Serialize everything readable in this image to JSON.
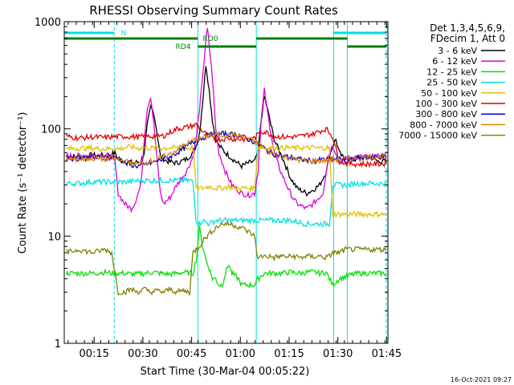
{
  "chart_data": {
    "type": "line",
    "title": "RHESSI Observing Summary Count Rates",
    "xlabel": "Start Time (30-Mar-04 00:05:22)",
    "ylabel": "Count Rate (s⁻¹ detector⁻¹)",
    "y_scale": "log",
    "ylim": [
      1,
      1000
    ],
    "xlim_minutes": [
      5.4,
      105.0
    ],
    "x_tick_labels": [
      "00:15",
      "00:30",
      "00:45",
      "01:00",
      "01:15",
      "01:30",
      "01:45"
    ],
    "y_tick_labels": [
      "1",
      "10",
      "100",
      "1000"
    ],
    "footer_date": "16-Oct-2021 09:27",
    "legend": {
      "header_line1": "Det 1,3,4,5,6,9,",
      "header_line2": "FDecim 1, Att 0",
      "placement": "top-right outside"
    },
    "series": [
      {
        "name": "3 - 6 keV",
        "color": "#000000",
        "x": [
          6,
          10,
          14,
          18,
          20,
          21,
          22,
          24,
          27,
          29,
          30,
          31,
          32,
          33,
          34,
          35,
          37,
          40,
          43,
          45,
          46,
          47,
          48,
          49,
          50,
          51,
          52,
          53,
          55,
          58,
          60,
          62,
          64,
          65,
          66,
          67,
          68,
          70,
          73,
          75,
          77,
          80,
          82,
          84,
          86,
          87,
          88,
          89,
          90,
          92,
          95,
          99,
          102,
          104.5
        ],
        "y": [
          55,
          55,
          57,
          56,
          58,
          60,
          52,
          50,
          48,
          50,
          60,
          110,
          160,
          140,
          90,
          55,
          50,
          48,
          52,
          60,
          70,
          90,
          180,
          400,
          230,
          120,
          80,
          70,
          60,
          50,
          45,
          48,
          50,
          60,
          120,
          200,
          150,
          80,
          50,
          35,
          28,
          25,
          27,
          30,
          40,
          55,
          70,
          80,
          60,
          50,
          52,
          55,
          50,
          50
        ]
      },
      {
        "name": "6 - 12 keV",
        "color": "#e000e0",
        "x": [
          6,
          10,
          14,
          18,
          20,
          21,
          22,
          24,
          26,
          27,
          29,
          30,
          31,
          32,
          33,
          34,
          35,
          36,
          38,
          40,
          43,
          45,
          46,
          47,
          48,
          49,
          49.5,
          50,
          51,
          52,
          53,
          55,
          57,
          60,
          62,
          64,
          65,
          66,
          67,
          68,
          70,
          72,
          75,
          77,
          80,
          82,
          85,
          86,
          87,
          88,
          89,
          90,
          92,
          95,
          99,
          102,
          104.5
        ],
        "y": [
          56,
          56,
          57,
          57,
          55,
          50,
          25,
          20,
          18,
          20,
          30,
          80,
          160,
          200,
          110,
          50,
          25,
          20,
          23,
          30,
          40,
          55,
          80,
          150,
          300,
          700,
          850,
          600,
          300,
          100,
          60,
          40,
          30,
          25,
          24,
          25,
          40,
          120,
          230,
          140,
          60,
          40,
          25,
          20,
          18,
          20,
          25,
          40,
          60,
          70,
          60,
          50,
          52,
          55,
          55,
          55,
          55
        ]
      },
      {
        "name": "12 - 25 keV",
        "color": "#00e000",
        "x": [
          6,
          10,
          14,
          18,
          20,
          24,
          27,
          30,
          33,
          35,
          38,
          40,
          42,
          44,
          45,
          46,
          47,
          48,
          49,
          50,
          51,
          52,
          53,
          54,
          55,
          56,
          57,
          59,
          60,
          61,
          62,
          63,
          64,
          65,
          67,
          70,
          72,
          75,
          78,
          80,
          82,
          84,
          86,
          87,
          88,
          90,
          93,
          96,
          100,
          104.5
        ],
        "y": [
          4.5,
          4.5,
          4.5,
          4.6,
          4.5,
          4.5,
          4.4,
          4.5,
          4.6,
          4.5,
          4.4,
          4.5,
          4.6,
          4.5,
          4.5,
          6,
          12,
          8,
          6,
          5,
          4,
          4,
          3.5,
          3.5,
          4.5,
          5.5,
          4.5,
          4,
          3.5,
          3.5,
          3.5,
          3.5,
          3.5,
          4,
          4.5,
          4.5,
          4.5,
          4.6,
          4.5,
          4.6,
          4.6,
          4.5,
          4.6,
          4,
          3.5,
          4,
          4.3,
          4.5,
          4.5,
          4.5
        ]
      },
      {
        "name": "25 - 50 keV",
        "color": "#00e0e0",
        "x": [
          6,
          10,
          14,
          18,
          20,
          24,
          30,
          35,
          40,
          44,
          45,
          46,
          47,
          48,
          50,
          52,
          55,
          58,
          60,
          62,
          64,
          65,
          67,
          70,
          75,
          80,
          84,
          86,
          87,
          88,
          90,
          93,
          95,
          99,
          102,
          104.5
        ],
        "y": [
          31,
          31,
          32,
          32,
          32,
          32,
          33,
          33,
          33,
          33,
          32,
          14,
          13,
          14,
          13,
          14,
          14,
          14,
          14,
          14,
          14,
          14,
          14,
          14,
          14,
          13,
          13,
          13,
          13,
          30,
          30,
          30,
          31,
          31,
          31,
          31
        ]
      },
      {
        "name": "50 - 100 keV",
        "color": "#e0c000",
        "x": [
          6,
          10,
          14,
          18,
          20,
          22,
          24,
          26,
          28,
          30,
          32,
          34,
          36,
          38,
          40,
          42,
          44,
          45,
          46,
          47,
          48,
          50,
          52,
          54,
          56,
          58,
          60,
          62,
          64,
          65,
          66,
          68,
          70,
          72,
          74,
          76,
          78,
          80,
          82,
          84,
          86,
          87,
          88,
          90,
          92,
          95,
          99,
          104.5
        ],
        "y": [
          65,
          66,
          66,
          65,
          66,
          65,
          67,
          68,
          66,
          67,
          66,
          67,
          66,
          67,
          66,
          67,
          66,
          67,
          28,
          28,
          28,
          29,
          28,
          28,
          29,
          28,
          28,
          28,
          28,
          68,
          67,
          66,
          67,
          66,
          67,
          66,
          67,
          66,
          67,
          66,
          67,
          66,
          16,
          16,
          16,
          16,
          16,
          16
        ]
      },
      {
        "name": "100 - 300 keV",
        "color": "#e00000",
        "x": [
          6,
          10,
          14,
          18,
          20,
          24,
          28,
          32,
          36,
          40,
          44,
          46,
          48,
          50,
          52,
          54,
          56,
          58,
          60,
          62,
          64,
          66,
          68,
          70,
          74,
          78,
          82,
          84,
          86,
          88,
          90,
          92,
          95,
          99,
          104.5
        ],
        "y": [
          85,
          82,
          84,
          83,
          84,
          85,
          84,
          85,
          86,
          100,
          105,
          110,
          95,
          85,
          80,
          80,
          82,
          80,
          80,
          80,
          82,
          95,
          92,
          85,
          84,
          85,
          90,
          95,
          100,
          85,
          50,
          48,
          47,
          47,
          47
        ]
      },
      {
        "name": "300 - 800 keV",
        "color": "#0000e0",
        "x": [
          6,
          10,
          14,
          18,
          20,
          22,
          24,
          26,
          28,
          30,
          34,
          38,
          42,
          46,
          50,
          54,
          58,
          60,
          62,
          64,
          66,
          68,
          70,
          74,
          78,
          82,
          86,
          90,
          94,
          98,
          102,
          104.5
        ],
        "y": [
          53,
          53,
          54,
          53,
          54,
          54,
          48,
          46,
          45,
          46,
          50,
          55,
          65,
          78,
          88,
          90,
          88,
          85,
          80,
          75,
          70,
          62,
          58,
          55,
          52,
          50,
          52,
          52,
          53,
          54,
          55,
          55
        ]
      },
      {
        "name": "800 - 7000 keV",
        "color": "#e08000",
        "x": [
          6,
          10,
          14,
          18,
          20,
          22,
          24,
          26,
          28,
          30,
          34,
          38,
          42,
          46,
          50,
          54,
          58,
          60,
          62,
          64,
          66,
          68,
          70,
          74,
          78,
          82,
          86,
          90,
          94,
          98,
          102,
          104.5
        ],
        "y": [
          52,
          52,
          53,
          52,
          53,
          52,
          50,
          48,
          47,
          48,
          52,
          58,
          70,
          80,
          86,
          88,
          87,
          85,
          82,
          76,
          70,
          62,
          58,
          54,
          51,
          50,
          51,
          52,
          53,
          54,
          55,
          55
        ]
      },
      {
        "name": "7000 - 15000 keV",
        "color": "#808000",
        "x": [
          6,
          10,
          14,
          18,
          20,
          22,
          24,
          26,
          28,
          30,
          32,
          34,
          36,
          38,
          40,
          42,
          44,
          45,
          46,
          47,
          48,
          50,
          52,
          54,
          56,
          58,
          60,
          62,
          64,
          65,
          66,
          68,
          70,
          72,
          74,
          76,
          78,
          80,
          82,
          84,
          86,
          87,
          88,
          90,
          92,
          95,
          99,
          104.5
        ],
        "y": [
          7,
          7.5,
          7,
          7.5,
          7,
          3,
          3,
          3.2,
          3,
          3.2,
          3,
          3.1,
          3,
          3.2,
          3,
          3.1,
          3,
          7,
          7.5,
          8,
          9,
          10.5,
          12,
          13,
          13,
          12.5,
          12,
          11,
          10,
          6,
          6.5,
          6.5,
          6.3,
          6.5,
          6.4,
          6.5,
          6.3,
          6.5,
          6.4,
          6.5,
          6.3,
          6.5,
          7,
          7,
          7.5,
          7.5,
          7.5,
          7.5
        ]
      }
    ],
    "attenuator_state_bar": {
      "color": "#008000",
      "label_rd0": "RD0",
      "label_rd4": "RD4",
      "segments": [
        {
          "x0": 5.4,
          "x1": 46.5,
          "level": "RD0"
        },
        {
          "x0": 46.5,
          "x1": 64.5,
          "level": "RD4"
        },
        {
          "x0": 64.5,
          "x1": 92.5,
          "level": "RD0"
        },
        {
          "x0": 92.5,
          "x1": 104.5,
          "level": "RD4"
        }
      ]
    },
    "night_bar": {
      "color": "#00e0e0",
      "label": "N",
      "segments": [
        {
          "x0": 5.4,
          "x1": 20.8
        },
        {
          "x0": 88.3,
          "x1": 104.5
        }
      ]
    },
    "event_markers_x": [
      {
        "x": 20.8,
        "style": "dashed",
        "color": "#00e0e0"
      },
      {
        "x": 46.5,
        "style": "solid",
        "color": "#00e0e0"
      },
      {
        "x": 64.5,
        "style": "solid",
        "color": "#00e0e0"
      },
      {
        "x": 88.3,
        "style": "solid",
        "color": "#00e0e0"
      },
      {
        "x": 92.5,
        "style": "solid",
        "color": "#00e0e0"
      },
      {
        "x": 104.5,
        "style": "dashed",
        "color": "#00e0e0"
      }
    ]
  }
}
